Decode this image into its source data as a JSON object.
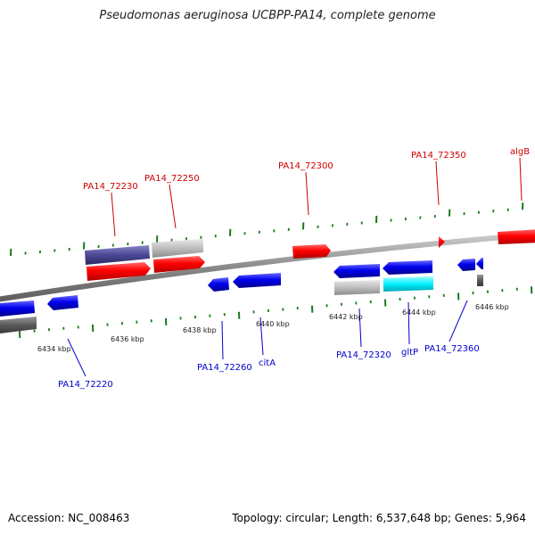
{
  "title": "Pseudomonas aeruginosa UCBPP-PA14, complete genome",
  "footer": {
    "accession": "Accession: NC_008463",
    "summary": "Topology: circular; Length: 6,537,648 bp; Genes: 5,964"
  },
  "colors": {
    "forward_label": "#cc0000",
    "reverse_label": "#0000cc",
    "tick": "#1a7a1a",
    "backbone": "#888888"
  },
  "gene_labels_top": [
    {
      "text": "PA14_72230"
    },
    {
      "text": "PA14_72250"
    },
    {
      "text": "PA14_72300"
    },
    {
      "text": "PA14_72350"
    },
    {
      "text": "algB"
    }
  ],
  "gene_labels_bottom": [
    {
      "text": "PA14_72220"
    },
    {
      "text": "PA14_72260"
    },
    {
      "text": "citA"
    },
    {
      "text": "PA14_72320"
    },
    {
      "text": "gltP"
    },
    {
      "text": "PA14_72360"
    }
  ],
  "scale_labels": [
    "6434 kbp",
    "6436 kbp",
    "6438 kbp",
    "6440 kbp",
    "6442 kbp",
    "6444 kbp",
    "6446 kbp"
  ]
}
